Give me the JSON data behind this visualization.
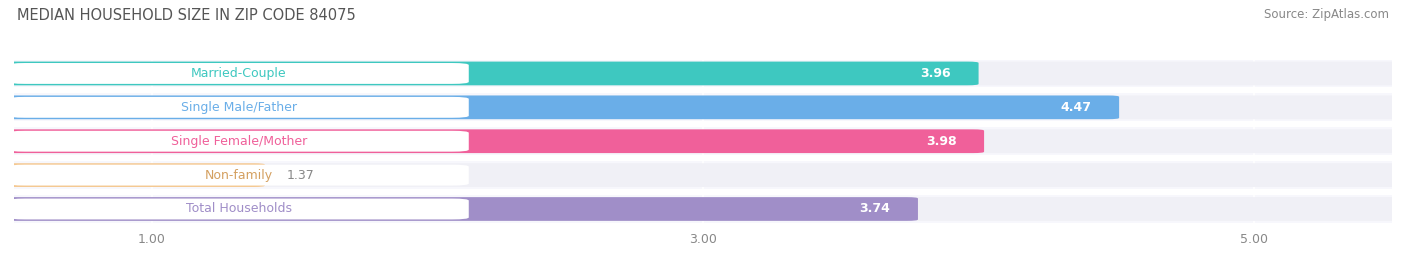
{
  "title": "MEDIAN HOUSEHOLD SIZE IN ZIP CODE 84075",
  "source": "Source: ZipAtlas.com",
  "categories": [
    "Married-Couple",
    "Single Male/Father",
    "Single Female/Mother",
    "Non-family",
    "Total Households"
  ],
  "values": [
    3.96,
    4.47,
    3.98,
    1.37,
    3.74
  ],
  "bar_colors": [
    "#3ec8c0",
    "#6aaee8",
    "#f0609a",
    "#f5c890",
    "#a08ec8"
  ],
  "label_text_colors": [
    "#3ec8c0",
    "#6aaee8",
    "#f0609a",
    "#d4a060",
    "#a08ec8"
  ],
  "background_color": "#ffffff",
  "bar_bg_color": "#f0f0f6",
  "row_bg_color": "#f7f7fc",
  "xlim_min": 0.5,
  "xlim_max": 5.5,
  "xticks": [
    1.0,
    3.0,
    5.0
  ],
  "title_fontsize": 10.5,
  "label_fontsize": 9,
  "value_fontsize": 9,
  "source_fontsize": 8.5
}
